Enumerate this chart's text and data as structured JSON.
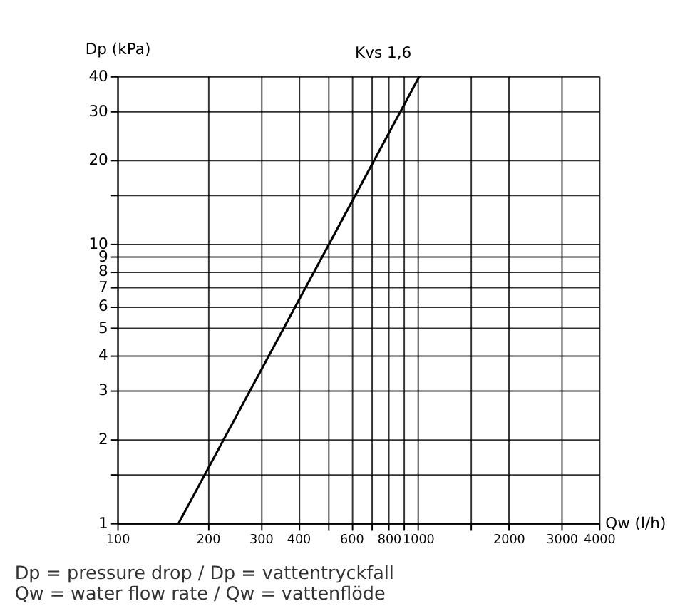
{
  "chart_data": {
    "type": "line",
    "xlabel": "Qw (l/h)",
    "ylabel": "Dp (kPa)",
    "series": [
      {
        "name": "Kvs 1,6",
        "color": "#000000",
        "x": [
          160,
          1012
        ],
        "values": [
          1,
          40
        ]
      }
    ],
    "log": "xy",
    "xlim": [
      100,
      4000
    ],
    "ylim": [
      1,
      40
    ],
    "xticks": [
      100,
      200,
      300,
      400,
      {
        "value": 500,
        "label": null
      },
      600,
      {
        "value": 700,
        "label": null
      },
      800,
      {
        "value": 900,
        "label": null
      },
      1000,
      {
        "value": 1500,
        "label": null
      },
      2000,
      3000,
      4000
    ],
    "yticks": [
      1,
      {
        "value": 1.5,
        "label": null
      },
      2,
      3,
      4,
      5,
      6,
      7,
      8,
      9,
      10,
      {
        "value": 15,
        "label": null
      },
      20,
      30,
      40
    ],
    "grid": true,
    "marker": "none",
    "line_style": "solid",
    "annotations": [
      "Dp = pressure drop / Dp = vattentryckfall",
      "Qw = water flow rate / Qw = vattenflöde"
    ]
  }
}
